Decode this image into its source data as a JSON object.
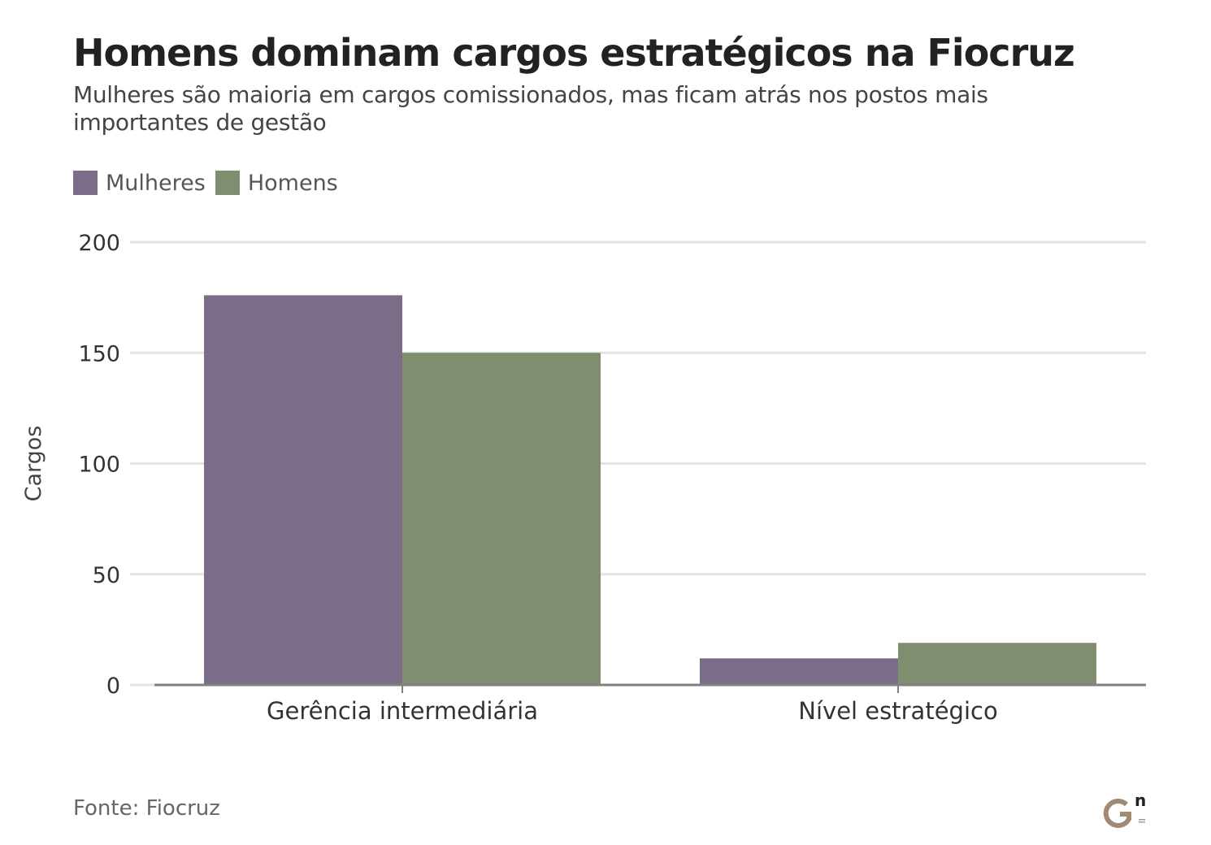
{
  "title": "Homens dominam cargos estratégicos na Fiocruz",
  "subtitle": "Mulheres são maioria em cargos comissionados, mas ficam atrás nos postos mais importantes de gestão",
  "source": "Fonte: Fiocruz",
  "logo": {
    "icon": "gn-logo-icon",
    "letters": "Gn"
  },
  "colors": {
    "Mulheres": "#7b6d87",
    "Homens": "#7e8e6e",
    "grid": "#e3e3e3",
    "axis": "#808080"
  },
  "chart_data": {
    "type": "bar",
    "categories": [
      "Gerência intermediária",
      "Nível estratégico"
    ],
    "series": [
      {
        "name": "Mulheres",
        "values": [
          176,
          12
        ]
      },
      {
        "name": "Homens",
        "values": [
          150,
          19
        ]
      }
    ],
    "title": "Homens dominam cargos estratégicos na Fiocruz",
    "xlabel": "",
    "ylabel": "Cargos",
    "ylim": [
      0,
      200
    ],
    "yticks": [
      0,
      50,
      100,
      150,
      200
    ],
    "grid": true,
    "legend": "top-left"
  }
}
